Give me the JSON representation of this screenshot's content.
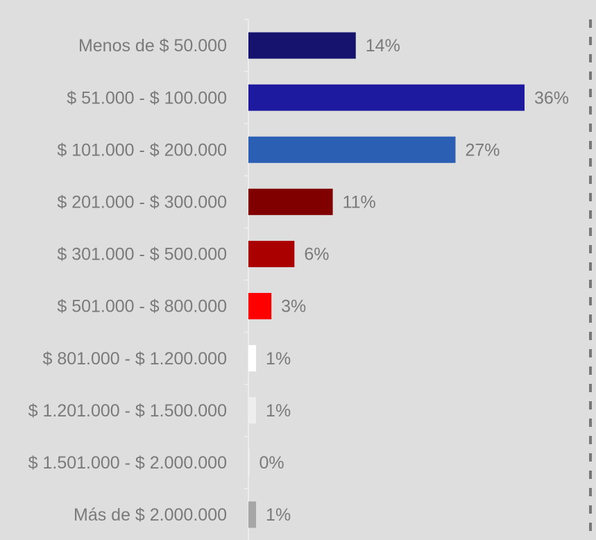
{
  "chart_data": {
    "type": "bar",
    "categories": [
      "Menos de $ 50.000",
      "$ 51.000 - $ 100.000",
      "$ 101.000 - $ 200.000",
      "$ 201.000 - $ 300.000",
      "$ 301.000 - $ 500.000",
      "$ 501.000 - $ 800.000",
      "$ 801.000 - $ 1.200.000",
      "$ 1.201.000 - $ 1.500.000",
      "$ 1.501.000 - $ 2.000.000",
      "Más de $ 2.000.000"
    ],
    "values": [
      14,
      36,
      27,
      11,
      6,
      3,
      1,
      1,
      0,
      1
    ],
    "value_labels": [
      "14%",
      "36%",
      "27%",
      "11%",
      "6%",
      "3%",
      "1%",
      "1%",
      "0%",
      "1%"
    ],
    "colors": [
      "#16136e",
      "#1e1aa0",
      "#2a5fb4",
      "#800000",
      "#aa0000",
      "#ff0000",
      "#ffffff",
      "#eeeeee",
      "#f2f2f2",
      "#a6a6a6"
    ]
  }
}
